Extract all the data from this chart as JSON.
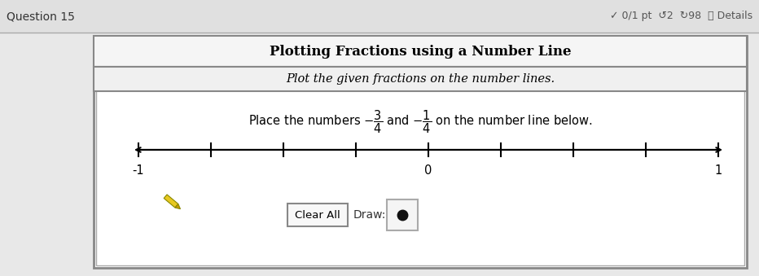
{
  "title": "Plotting Fractions using a Number Line",
  "subtitle": "Plot the given fractions on the number lines.",
  "instruction": "Place the numbers $-\\dfrac{3}{4}$ and $-\\dfrac{1}{4}$ on the number line below.",
  "number_line_min": -1,
  "number_line_max": 1,
  "tick_positions": [
    -1,
    -0.75,
    -0.5,
    -0.25,
    0,
    0.25,
    0.5,
    0.75,
    1
  ],
  "tick_labels": {
    "-1": "-1",
    "0": "0",
    "1": "1"
  },
  "outer_bg": "#e8e8e8",
  "top_bg": "#e0e0e0",
  "panel_bg": "#ffffff",
  "panel_border": "#888888",
  "title_bar_bg": "#f5f5f5",
  "subtitle_bar_bg": "#f0f0f0",
  "button_text": "Clear All",
  "draw_label": "Draw:",
  "dot_color": "#111111",
  "pencil_color": "#e8c820",
  "pencil_tip_color": "#555500"
}
